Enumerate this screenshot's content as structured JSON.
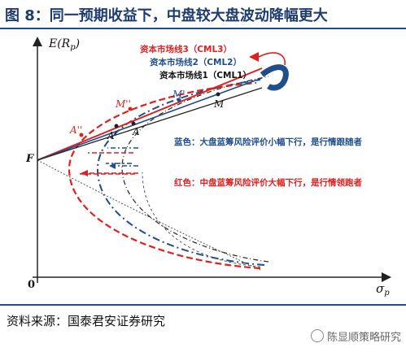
{
  "title": "图 8：同一预期收益下，中盘较大盘波动降幅更大",
  "source": "资料来源：国泰君安证券研究",
  "watermark": "陈显顺策略研究",
  "axes": {
    "y_label": "E(R",
    "y_sub": "p",
    "y_close": ")",
    "x_label": "σ",
    "x_sub": "p",
    "origin": "0"
  },
  "points": {
    "F": "F",
    "A": "A",
    "A1": "A'",
    "A2": "A''",
    "M": "M",
    "M1": "M'",
    "M2": "M''"
  },
  "cml": {
    "cml3": "资本市场线3（CML3）",
    "cml2": "资本市场线2（CML2）",
    "cml1": "资本市场线1（CML1）"
  },
  "notes": {
    "blue": "蓝色：大盘蓝筹风险评价小幅下行，是行情跟随者",
    "red": "红色：中盘蓝筹风险评价大幅下行，是行情领跑者"
  },
  "colors": {
    "red": "#e02020",
    "blue": "#1f4e8c",
    "black": "#222222",
    "title": "#1f3c6e"
  }
}
